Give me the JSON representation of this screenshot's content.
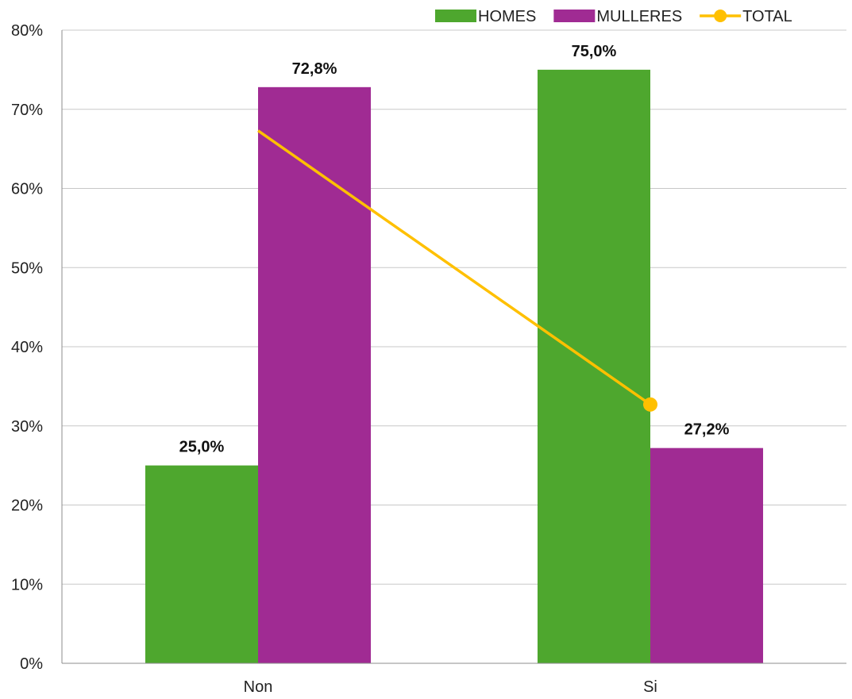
{
  "chart_data": {
    "type": "bar",
    "categories": [
      "Non",
      "Si"
    ],
    "series": [
      {
        "name": "HOMES",
        "kind": "bar",
        "color": "#4ea72e",
        "values": [
          25.0,
          75.0
        ],
        "labels": [
          "25,0%",
          "75,0%"
        ]
      },
      {
        "name": "MULLERES",
        "kind": "bar",
        "color": "#a02b93",
        "values": [
          72.8,
          27.2
        ],
        "labels": [
          "72,8%",
          "27,2%"
        ]
      },
      {
        "name": "TOTAL",
        "kind": "line",
        "color": "#ffc000",
        "values": [
          67.3,
          32.7
        ]
      }
    ],
    "ylim": [
      0,
      80
    ],
    "yticks": [
      "0%",
      "10%",
      "20%",
      "30%",
      "40%",
      "50%",
      "60%",
      "70%",
      "80%"
    ],
    "grid": true,
    "legend": "top-right",
    "title": "",
    "xlabel": "",
    "ylabel": ""
  }
}
